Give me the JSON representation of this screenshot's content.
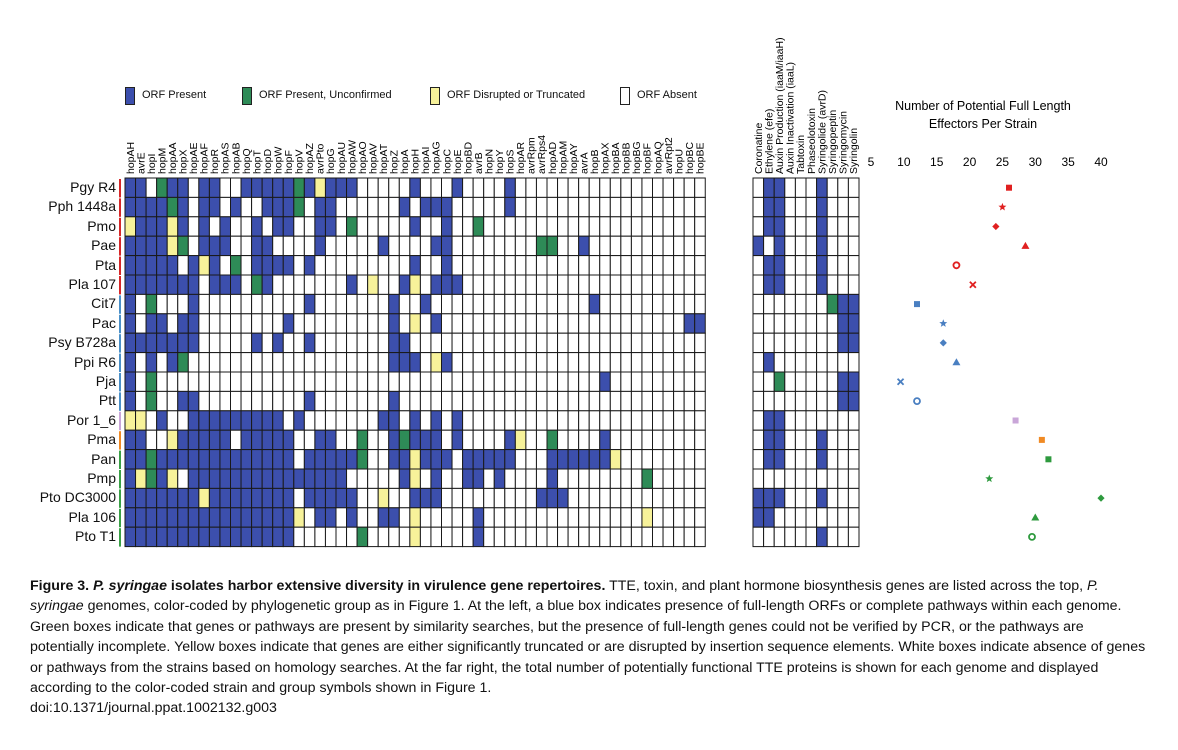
{
  "legend": [
    {
      "label": "ORF Present",
      "color": "#3c4fad"
    },
    {
      "label": "ORF Present, Unconfirmed",
      "color": "#2e8b57"
    },
    {
      "label": "ORF Disrupted or Truncated",
      "color": "#f7f29a"
    },
    {
      "label": "ORF Absent",
      "color": "#ffffff"
    }
  ],
  "effector_genes": [
    "hopAH",
    "avrE",
    "hopI",
    "hopM",
    "hopAA",
    "hopX",
    "hopAE",
    "hopAF",
    "hopR",
    "hopAS",
    "hopAB",
    "hopQ",
    "hopT",
    "hopD",
    "hopW",
    "hopF",
    "hopV",
    "hopAZ",
    "avrPto",
    "hopG",
    "hopAU",
    "hopAW",
    "hopAO",
    "hopAV",
    "hopAT",
    "hopZ",
    "hopA",
    "hopH",
    "hopAI",
    "hopAG",
    "hopC",
    "hopE",
    "hopBD",
    "avrB",
    "hopN",
    "hopY",
    "hopS",
    "hopAR",
    "avrRpm",
    "avrRps4",
    "hopAD",
    "hopAM",
    "hopAY",
    "avrA",
    "hopB",
    "hopAX",
    "hopBA",
    "hopBB",
    "hopBG",
    "hopBF",
    "hopAQ",
    "avrRpt2",
    "hopU",
    "hopBC",
    "hopBE"
  ],
  "toxin_genes": [
    "Coronatine",
    "Ethylene (efe)",
    "Auxin Production (iaaM/iaaH)",
    "Auxin Inactivation (iaaL)",
    "Tabtoxin",
    "Phaseolotoxin",
    "Syringolide (avrD)",
    "Syringopeptin",
    "Syringomycin",
    "Syringolin"
  ],
  "strains": [
    "Pgy R4",
    "Pph 1448a",
    "Pmo",
    "Pae",
    "Pta",
    "Pla 107",
    "Cit7",
    "Pac",
    "Psy B728a",
    "Ppi R6",
    "Pja",
    "Ptt",
    "Por 1_6",
    "Pma",
    "Pan",
    "Pmp",
    "Pto DC3000",
    "Pla 106",
    "Pto T1"
  ],
  "group_colors": [
    "#d62728",
    "#d62728",
    "#d62728",
    "#d62728",
    "#d62728",
    "#d62728",
    "#4a90c8",
    "#4a90c8",
    "#4a90c8",
    "#4a90c8",
    "#4a90c8",
    "#4a90c8",
    "#c9a6d8",
    "#f08a24",
    "#3aa046",
    "#3aa046",
    "#3aa046",
    "#3aa046",
    "#3aa046"
  ],
  "effector_matrix": [
    "1102110110011111213111000001000100001000000000000000000",
    "1111210110100111201100000010111000001000000000000000000",
    "3111310101001011001102000001001002000000000000000000000",
    "1111320111001100001000001000011000000002200100000000000",
    "1111101310201111010000000001001000000000000000000000000",
    "1111111011102100000001030013011100000000000000000000000",
    "1020001000000000010000000100100000000000000010000000000",
    "1011011000000001000000000103010000000000000000000000011",
    "1111111000001010010000000110000000000000000000000000000",
    "1010120000000000000000000111031000000000000000000000000",
    "1020000000000000000000000000000000000000000001000000000",
    "1020011000000000010000000100000000000000000000000000000",
    "3301001111111110100000001101010100000000000000000000000",
    "1100311111011111001100200121110100001300200001000000000",
    "1121111111111111011111200113111011111000111111300000000",
    "1321301111111111111110000013010011010000100000000200000",
    "1111111311111111011111003001110000000001110000000000000",
    "1111111111111111301101001103000001000000000000000300000",
    "1111111111111111000000200003000001000000000000000000000"
  ],
  "toxin_matrix": [
    "0110001000",
    "0110001000",
    "0110001000",
    "1010001000",
    "0110001000",
    "0110001000",
    "0000000211",
    "0000000011",
    "0000000011",
    "0100000000",
    "0020000011",
    "0000000011",
    "0110000000",
    "0110001000",
    "0110001000",
    "0000000000",
    "1110001000",
    "1100000000",
    "0000001000"
  ],
  "effector_chart": {
    "title": "Number of Potential Full Length Effectors Per Strain",
    "ticks": [
      5,
      10,
      15,
      20,
      25,
      30,
      35,
      40
    ],
    "xlim": [
      5,
      40
    ]
  },
  "chart_data": {
    "type": "scatter",
    "title": "Number of Potential Full Length Effectors Per Strain",
    "xlabel": "",
    "ylabel": "",
    "xlim": [
      5,
      40
    ],
    "points": [
      {
        "strain": "Pgy R4",
        "value": 26,
        "symbol": "square",
        "color": "#e02020"
      },
      {
        "strain": "Pph 1448a",
        "value": 25,
        "symbol": "star",
        "color": "#e02020"
      },
      {
        "strain": "Pmo",
        "value": 24,
        "symbol": "diamond",
        "color": "#e02020"
      },
      {
        "strain": "Pae",
        "value": 28.5,
        "symbol": "triangle",
        "color": "#e02020"
      },
      {
        "strain": "Pta",
        "value": 18,
        "symbol": "ring",
        "color": "#e02020"
      },
      {
        "strain": "Pla 107",
        "value": 20.5,
        "symbol": "cross",
        "color": "#e02020"
      },
      {
        "strain": "Cit7",
        "value": 12,
        "symbol": "square",
        "color": "#4a7fc1"
      },
      {
        "strain": "Pac",
        "value": 16,
        "symbol": "star",
        "color": "#4a7fc1"
      },
      {
        "strain": "Psy B728a",
        "value": 16,
        "symbol": "diamond",
        "color": "#4a7fc1"
      },
      {
        "strain": "Ppi R6",
        "value": 18,
        "symbol": "triangle",
        "color": "#4a7fc1"
      },
      {
        "strain": "Pja",
        "value": 9.5,
        "symbol": "cross",
        "color": "#4a7fc1"
      },
      {
        "strain": "Ptt",
        "value": 12,
        "symbol": "ring",
        "color": "#4a7fc1"
      },
      {
        "strain": "Por 1_6",
        "value": 27,
        "symbol": "square",
        "color": "#c9a6d8"
      },
      {
        "strain": "Pma",
        "value": 31,
        "symbol": "square",
        "color": "#f08a24"
      },
      {
        "strain": "Pan",
        "value": 32,
        "symbol": "square",
        "color": "#2e9a3e"
      },
      {
        "strain": "Pmp",
        "value": 23,
        "symbol": "star",
        "color": "#2e9a3e"
      },
      {
        "strain": "Pto DC3000",
        "value": 40,
        "symbol": "diamond",
        "color": "#2e9a3e"
      },
      {
        "strain": "Pla 106",
        "value": 30,
        "symbol": "triangle",
        "color": "#2e9a3e"
      },
      {
        "strain": "Pto T1",
        "value": 29.5,
        "symbol": "ring",
        "color": "#2e9a3e"
      }
    ]
  },
  "caption": {
    "fig_label": "Figure 3.",
    "fig_title_italic": "P. syringae",
    "fig_title_rest": " isolates harbor extensive diversity in virulence gene repertoires.",
    "body_1": " TTE, toxin, and plant hormone biosynthesis genes are listed across the top, ",
    "body_italic": "P. syringae",
    "body_2": " genomes, color-coded by phylogenetic group as in Figure 1. At the left, a blue box indicates presence of full-length ORFs or complete pathways within each genome. Green boxes indicate that genes or pathways are present by similarity searches, but the presence of full-length genes could not be verified by PCR, or the pathways are potentially incomplete. Yellow boxes indicate that genes are either significantly truncated or are disrupted by insertion sequence elements. White boxes indicate absence of genes or pathways from the strains based on homology searches. At the far right, the total number of potentially functional TTE proteins is shown for each genome and displayed according to the color-coded strain and group symbols shown in Figure 1.",
    "doi": "doi:10.1371/journal.ppat.1002132.g003"
  }
}
